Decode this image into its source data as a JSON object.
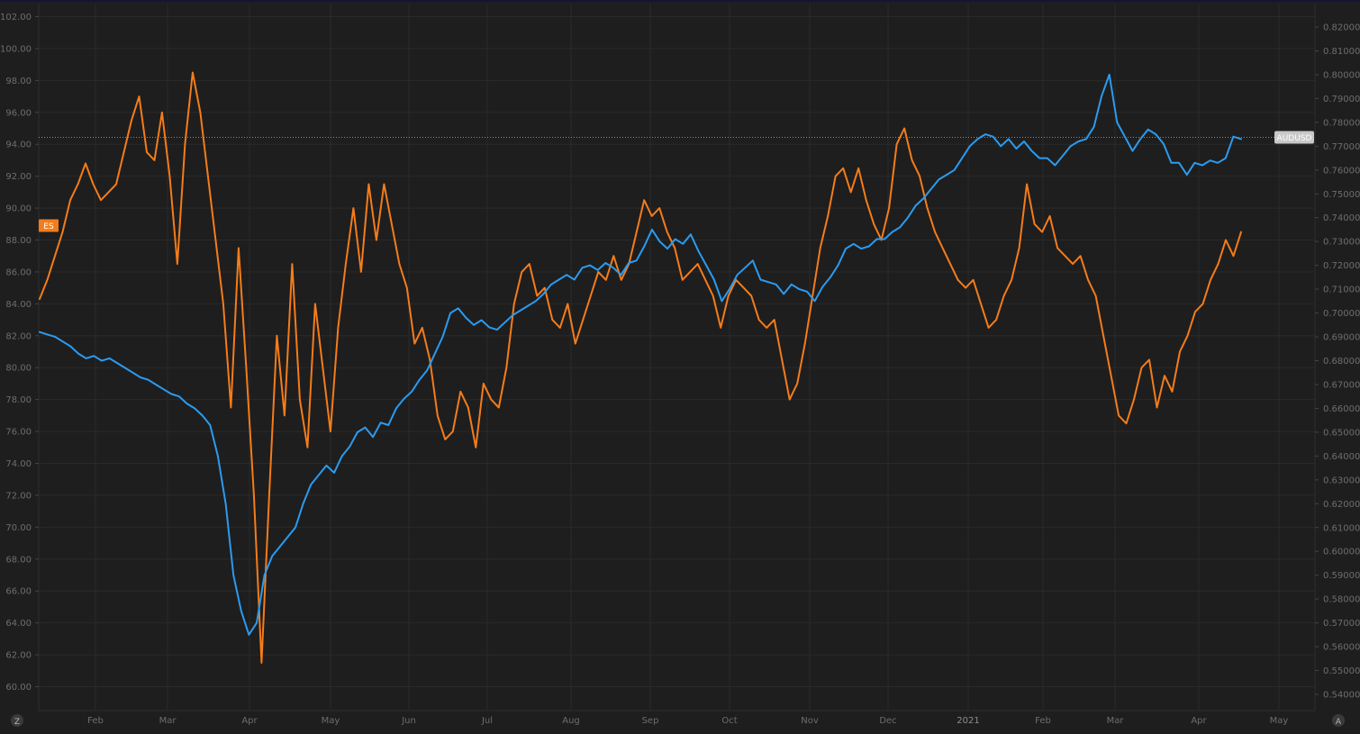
{
  "chart_data": {
    "type": "line",
    "left_axis": {
      "labels": [
        "102.00",
        "100.00",
        "98.00",
        "96.00",
        "94.00",
        "92.00",
        "90.00",
        "88.00",
        "86.00",
        "84.00",
        "82.00",
        "80.00",
        "78.00",
        "76.00",
        "74.00",
        "72.00",
        "70.00",
        "68.00",
        "66.00",
        "64.00",
        "62.00",
        "60.00"
      ]
    },
    "right_axis": {
      "labels": [
        "0.82000",
        "0.81000",
        "0.80000",
        "0.79000",
        "0.78000",
        "0.77000",
        "0.76000",
        "0.75000",
        "0.74000",
        "0.73000",
        "0.72000",
        "0.71000",
        "0.70000",
        "0.69000",
        "0.68000",
        "0.67000",
        "0.66000",
        "0.65000",
        "0.64000",
        "0.63000",
        "0.62000",
        "0.61000",
        "0.60000",
        "0.59000",
        "0.58000",
        "0.57000",
        "0.56000",
        "0.55000",
        "0.54000"
      ]
    },
    "x_ticks": [
      "Feb",
      "Mar",
      "Apr",
      "May",
      "Jun",
      "Jul",
      "Aug",
      "Sep",
      "Oct",
      "Nov",
      "Dec",
      "2021",
      "Feb",
      "Mar",
      "Apr",
      "May"
    ],
    "series": [
      {
        "name": "ES",
        "axis": "left",
        "color": "#f57c1a",
        "last_label": "ES",
        "values": [
          84.3,
          85.5,
          87.0,
          88.5,
          90.5,
          91.5,
          92.8,
          91.5,
          90.5,
          91.0,
          91.5,
          93.5,
          95.5,
          97.0,
          93.5,
          93.0,
          96.0,
          92.0,
          86.5,
          94.0,
          98.5,
          96.0,
          92.0,
          88.0,
          84.0,
          77.5,
          87.5,
          80.0,
          72.0,
          61.5,
          72.0,
          82.0,
          77.0,
          86.5,
          78.0,
          75.0,
          84.0,
          80.0,
          76.0,
          82.5,
          86.5,
          90.0,
          86.0,
          91.5,
          88.0,
          91.5,
          89.0,
          86.5,
          85.0,
          81.5,
          82.5,
          80.5,
          77.0,
          75.5,
          76.0,
          78.5,
          77.5,
          75.0,
          79.0,
          78.0,
          77.5,
          80.0,
          84.0,
          86.0,
          86.5,
          84.5,
          85.0,
          83.0,
          82.5,
          84.0,
          81.5,
          83.0,
          84.5,
          86.0,
          85.5,
          87.0,
          85.5,
          86.5,
          88.5,
          90.5,
          89.5,
          90.0,
          88.5,
          87.5,
          85.5,
          86.0,
          86.5,
          85.5,
          84.5,
          82.5,
          84.5,
          85.5,
          85.0,
          84.5,
          83.0,
          82.5,
          83.0,
          80.5,
          78.0,
          79.0,
          81.5,
          84.5,
          87.5,
          89.5,
          92.0,
          92.5,
          91.0,
          92.5,
          90.5,
          89.0,
          88.0,
          90.0,
          94.0,
          95.0,
          93.0,
          92.0,
          90.0,
          88.5,
          87.5,
          86.5,
          85.5,
          85.0,
          85.5,
          84.0,
          82.5,
          83.0,
          84.5,
          85.5,
          87.5,
          91.5,
          89.0,
          88.5,
          89.5,
          87.5,
          87.0,
          86.5,
          87.0,
          85.5,
          84.5,
          82.0,
          79.5,
          77.0,
          76.5,
          78.0,
          80.0,
          80.5,
          77.5,
          79.5,
          78.5,
          81.0,
          82.0,
          83.5,
          84.0,
          85.5,
          86.5,
          88.0,
          87.0,
          88.5
        ]
      },
      {
        "name": "AUDUSD",
        "axis": "right",
        "color": "#2b9bf0",
        "last_label": "AUDUSD",
        "values": [
          0.692,
          0.691,
          0.69,
          0.688,
          0.686,
          0.683,
          0.681,
          0.682,
          0.68,
          0.681,
          0.679,
          0.677,
          0.675,
          0.673,
          0.672,
          0.67,
          0.668,
          0.666,
          0.665,
          0.662,
          0.66,
          0.657,
          0.653,
          0.64,
          0.62,
          0.59,
          0.575,
          0.565,
          0.57,
          0.59,
          0.598,
          0.602,
          0.606,
          0.61,
          0.62,
          0.628,
          0.632,
          0.636,
          0.633,
          0.64,
          0.644,
          0.65,
          0.652,
          0.648,
          0.654,
          0.653,
          0.66,
          0.664,
          0.667,
          0.672,
          0.676,
          0.683,
          0.69,
          0.7,
          0.702,
          0.698,
          0.695,
          0.697,
          0.694,
          0.693,
          0.696,
          0.699,
          0.701,
          0.703,
          0.705,
          0.708,
          0.712,
          0.714,
          0.716,
          0.714,
          0.719,
          0.72,
          0.718,
          0.721,
          0.719,
          0.716,
          0.721,
          0.722,
          0.728,
          0.735,
          0.73,
          0.727,
          0.731,
          0.729,
          0.733,
          0.726,
          0.72,
          0.714,
          0.705,
          0.71,
          0.716,
          0.719,
          0.722,
          0.714,
          0.713,
          0.712,
          0.708,
          0.712,
          0.71,
          0.709,
          0.705,
          0.711,
          0.715,
          0.72,
          0.727,
          0.729,
          0.727,
          0.728,
          0.731,
          0.731,
          0.734,
          0.736,
          0.74,
          0.745,
          0.748,
          0.752,
          0.756,
          0.758,
          0.76,
          0.765,
          0.77,
          0.773,
          0.775,
          0.774,
          0.77,
          0.773,
          0.769,
          0.772,
          0.768,
          0.765,
          0.765,
          0.762,
          0.766,
          0.77,
          0.772,
          0.773,
          0.778,
          0.791,
          0.8,
          0.78,
          0.774,
          0.768,
          0.773,
          0.777,
          0.775,
          0.771,
          0.763,
          0.763,
          0.758,
          0.763,
          0.762,
          0.764,
          0.763,
          0.765,
          0.774,
          0.773
        ]
      }
    ],
    "reference_line": {
      "series": "AUDUSD",
      "value": 0.7737
    },
    "corner_labels": {
      "bottom_left": "Z",
      "bottom_right": "A"
    },
    "colors": {
      "background": "#1e1e1e",
      "grid": "#2a2a2a",
      "axis_text": "#6e6e6e",
      "es": "#f57c1a",
      "audusd": "#2b9bf0"
    }
  }
}
